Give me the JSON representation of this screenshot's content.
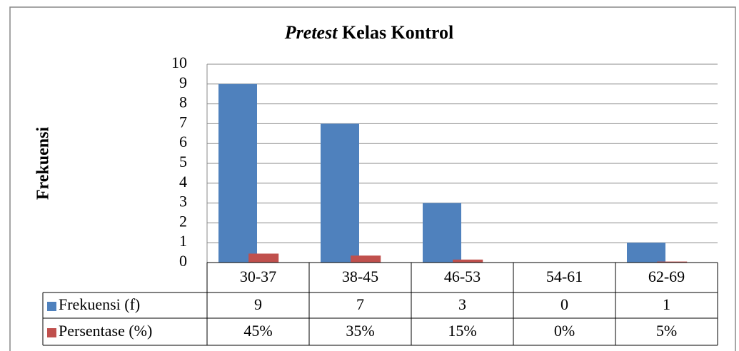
{
  "chart_data": {
    "type": "bar",
    "title_emphasis": "Pretest",
    "title": "Kelas Kontrol",
    "ylabel": "Frekuensi",
    "categories": [
      "30-37",
      "38-45",
      "46-53",
      "54-61",
      "62-69"
    ],
    "series": [
      {
        "name": "Frekuensi (f)",
        "color": "#4f81bd",
        "values": [
          9,
          7,
          3,
          0,
          1
        ]
      },
      {
        "name": "Persentase (%)",
        "color": "#c0504d",
        "values": [
          0.45,
          0.35,
          0.15,
          0,
          0.05
        ],
        "value_labels": [
          "45%",
          "35%",
          "15%",
          "0%",
          "5%"
        ]
      }
    ],
    "ylim": [
      0,
      10
    ],
    "yticks": [
      0,
      1,
      2,
      3,
      4,
      5,
      6,
      7,
      8,
      9,
      10
    ],
    "grid": true
  }
}
